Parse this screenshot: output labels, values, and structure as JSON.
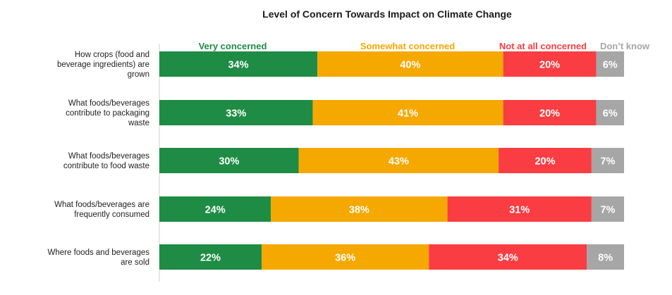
{
  "chart_data": {
    "type": "bar",
    "orientation": "horizontal",
    "stacked": true,
    "title": "Level of Concern Towards Impact on Climate Change",
    "xlabel": "",
    "ylabel": "",
    "xlim": [
      0,
      100
    ],
    "legend_position": "top",
    "categories": [
      [
        "How crops (food and",
        "beverage ingredients) are",
        "grown"
      ],
      [
        "What foods/beverages",
        "contribute to packaging",
        "waste"
      ],
      [
        "What foods/beverages",
        "contribute to food waste"
      ],
      [
        "What foods/beverages are",
        "frequently consumed"
      ],
      [
        "Where foods and beverages",
        "are sold"
      ]
    ],
    "series": [
      {
        "name": "Very concerned",
        "color": "#1e8c45",
        "values": [
          34,
          33,
          30,
          24,
          22
        ]
      },
      {
        "name": "Somewhat concerned",
        "color": "#f5a800",
        "values": [
          40,
          41,
          43,
          38,
          36
        ]
      },
      {
        "name": "Not at all concerned",
        "color": "#f93d42",
        "values": [
          20,
          20,
          20,
          31,
          34
        ]
      },
      {
        "name": "Don’t know",
        "color": "#a6a6a6",
        "values": [
          6,
          6,
          7,
          7,
          8
        ]
      }
    ],
    "value_suffix": "%"
  }
}
